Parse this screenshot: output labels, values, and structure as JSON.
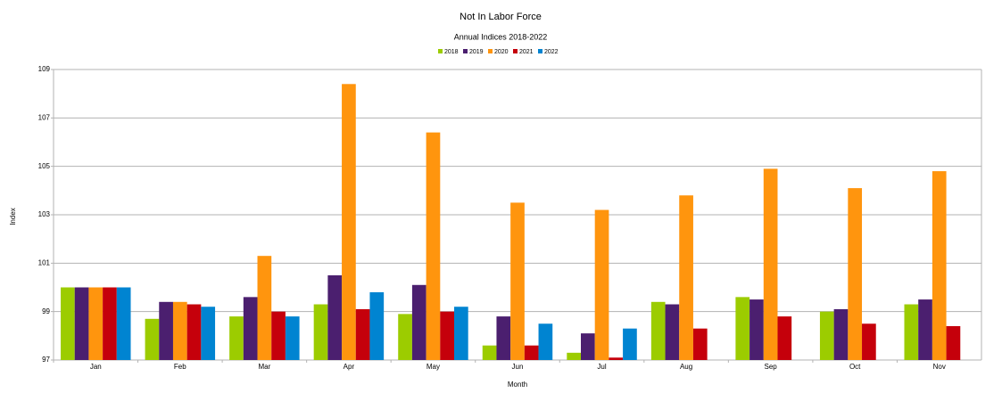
{
  "chart_data": {
    "type": "bar",
    "title": "Not In Labor Force",
    "subtitle": "Annual Indices 2018-2022",
    "x_label": "Month",
    "y_label": "Index",
    "categories": [
      "Jan",
      "Feb",
      "Mar",
      "Apr",
      "May",
      "Jun",
      "Jul",
      "Aug",
      "Sep",
      "Oct",
      "Nov"
    ],
    "series": [
      {
        "name": "2018",
        "color": "#9ccc00",
        "values": [
          100,
          98.7,
          98.8,
          99.3,
          98.9,
          97.6,
          97.3,
          99.4,
          99.6,
          99.0,
          99.3
        ]
      },
      {
        "name": "2019",
        "color": "#4b1f6f",
        "values": [
          100,
          99.4,
          99.6,
          100.5,
          100.1,
          98.8,
          98.1,
          99.3,
          99.5,
          99.1,
          99.5
        ]
      },
      {
        "name": "2020",
        "color": "#ff950e",
        "values": [
          100,
          99.4,
          101.3,
          108.4,
          106.4,
          103.5,
          103.2,
          103.8,
          104.9,
          104.1,
          104.8
        ]
      },
      {
        "name": "2021",
        "color": "#c5000b",
        "values": [
          100,
          99.3,
          99.0,
          99.1,
          99.0,
          97.6,
          97.1,
          98.3,
          98.8,
          98.5,
          98.4
        ]
      },
      {
        "name": "2022",
        "color": "#0084d1",
        "values": [
          100,
          99.2,
          98.8,
          99.8,
          99.2,
          98.5,
          98.3,
          null,
          null,
          null,
          null
        ]
      }
    ],
    "ylim": [
      97,
      109
    ],
    "yticks": [
      97,
      99,
      101,
      103,
      105,
      107,
      109
    ],
    "grid": true,
    "legend": "top"
  }
}
